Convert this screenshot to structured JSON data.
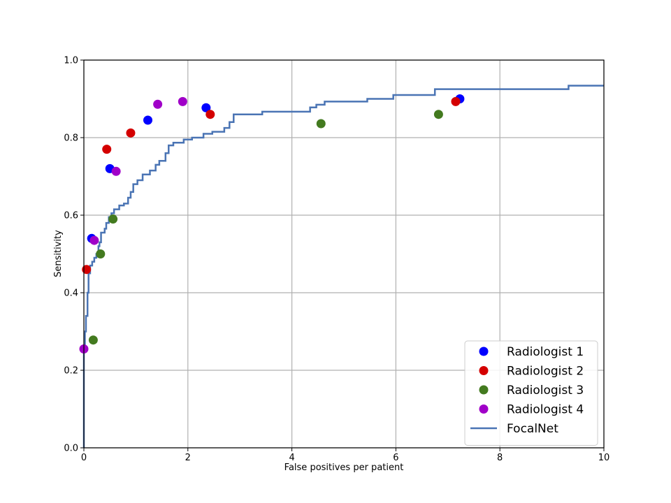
{
  "chart_data": {
    "type": "scatter",
    "title": "",
    "xlabel": "False positives per patient",
    "ylabel": "Sensitivity",
    "xlim": [
      0,
      10
    ],
    "ylim": [
      0,
      1.0
    ],
    "xticks": [
      0,
      2,
      4,
      6,
      8,
      10
    ],
    "xtick_labels": [
      "0",
      "2",
      "4",
      "6",
      "8",
      "10"
    ],
    "yticks": [
      0.0,
      0.2,
      0.4,
      0.6,
      0.8,
      1.0
    ],
    "ytick_labels": [
      "0.0",
      "0.2",
      "0.4",
      "0.6",
      "0.8",
      "1.0"
    ],
    "grid": true,
    "legend_position": "bottom-right",
    "series": [
      {
        "name": "Radiologist 1",
        "kind": "scatter",
        "color": "#0000ff",
        "points": [
          [
            0.15,
            0.54
          ],
          [
            0.5,
            0.72
          ],
          [
            1.23,
            0.845
          ],
          [
            2.35,
            0.877
          ],
          [
            7.23,
            0.9
          ]
        ]
      },
      {
        "name": "Radiologist 2",
        "kind": "scatter",
        "color": "#d40000",
        "points": [
          [
            0.05,
            0.46
          ],
          [
            0.44,
            0.77
          ],
          [
            0.9,
            0.812
          ],
          [
            2.43,
            0.86
          ],
          [
            7.15,
            0.893
          ]
        ]
      },
      {
        "name": "Radiologist 3",
        "kind": "scatter",
        "color": "#437a1f",
        "points": [
          [
            0.18,
            0.278
          ],
          [
            0.32,
            0.5
          ],
          [
            0.56,
            0.59
          ],
          [
            4.56,
            0.836
          ],
          [
            6.82,
            0.86
          ]
        ]
      },
      {
        "name": "Radiologist 4",
        "kind": "scatter",
        "color": "#a000c8",
        "points": [
          [
            0.0,
            0.255
          ],
          [
            0.2,
            0.535
          ],
          [
            0.62,
            0.713
          ],
          [
            1.42,
            0.886
          ],
          [
            1.9,
            0.893
          ]
        ]
      },
      {
        "name": "FocalNet",
        "kind": "step-line",
        "color": "#4a74b4",
        "points": [
          [
            0.0,
            0.0
          ],
          [
            0.0,
            0.25
          ],
          [
            0.02,
            0.3
          ],
          [
            0.04,
            0.34
          ],
          [
            0.07,
            0.4
          ],
          [
            0.09,
            0.45
          ],
          [
            0.12,
            0.47
          ],
          [
            0.16,
            0.48
          ],
          [
            0.2,
            0.49
          ],
          [
            0.24,
            0.5
          ],
          [
            0.28,
            0.52
          ],
          [
            0.3,
            0.53
          ],
          [
            0.33,
            0.555
          ],
          [
            0.4,
            0.565
          ],
          [
            0.43,
            0.58
          ],
          [
            0.48,
            0.595
          ],
          [
            0.53,
            0.605
          ],
          [
            0.58,
            0.615
          ],
          [
            0.68,
            0.625
          ],
          [
            0.77,
            0.63
          ],
          [
            0.85,
            0.645
          ],
          [
            0.9,
            0.66
          ],
          [
            0.95,
            0.68
          ],
          [
            1.03,
            0.69
          ],
          [
            1.13,
            0.705
          ],
          [
            1.27,
            0.715
          ],
          [
            1.38,
            0.73
          ],
          [
            1.45,
            0.74
          ],
          [
            1.57,
            0.76
          ],
          [
            1.63,
            0.78
          ],
          [
            1.72,
            0.787
          ],
          [
            1.92,
            0.795
          ],
          [
            2.08,
            0.8
          ],
          [
            2.3,
            0.81
          ],
          [
            2.47,
            0.815
          ],
          [
            2.7,
            0.825
          ],
          [
            2.8,
            0.84
          ],
          [
            2.88,
            0.86
          ],
          [
            3.43,
            0.867
          ],
          [
            4.35,
            0.878
          ],
          [
            4.47,
            0.885
          ],
          [
            4.63,
            0.893
          ],
          [
            5.45,
            0.9
          ],
          [
            5.95,
            0.91
          ],
          [
            6.55,
            0.91
          ],
          [
            6.75,
            0.925
          ],
          [
            9.2,
            0.925
          ],
          [
            9.32,
            0.934
          ],
          [
            10.0,
            0.934
          ]
        ]
      }
    ]
  }
}
